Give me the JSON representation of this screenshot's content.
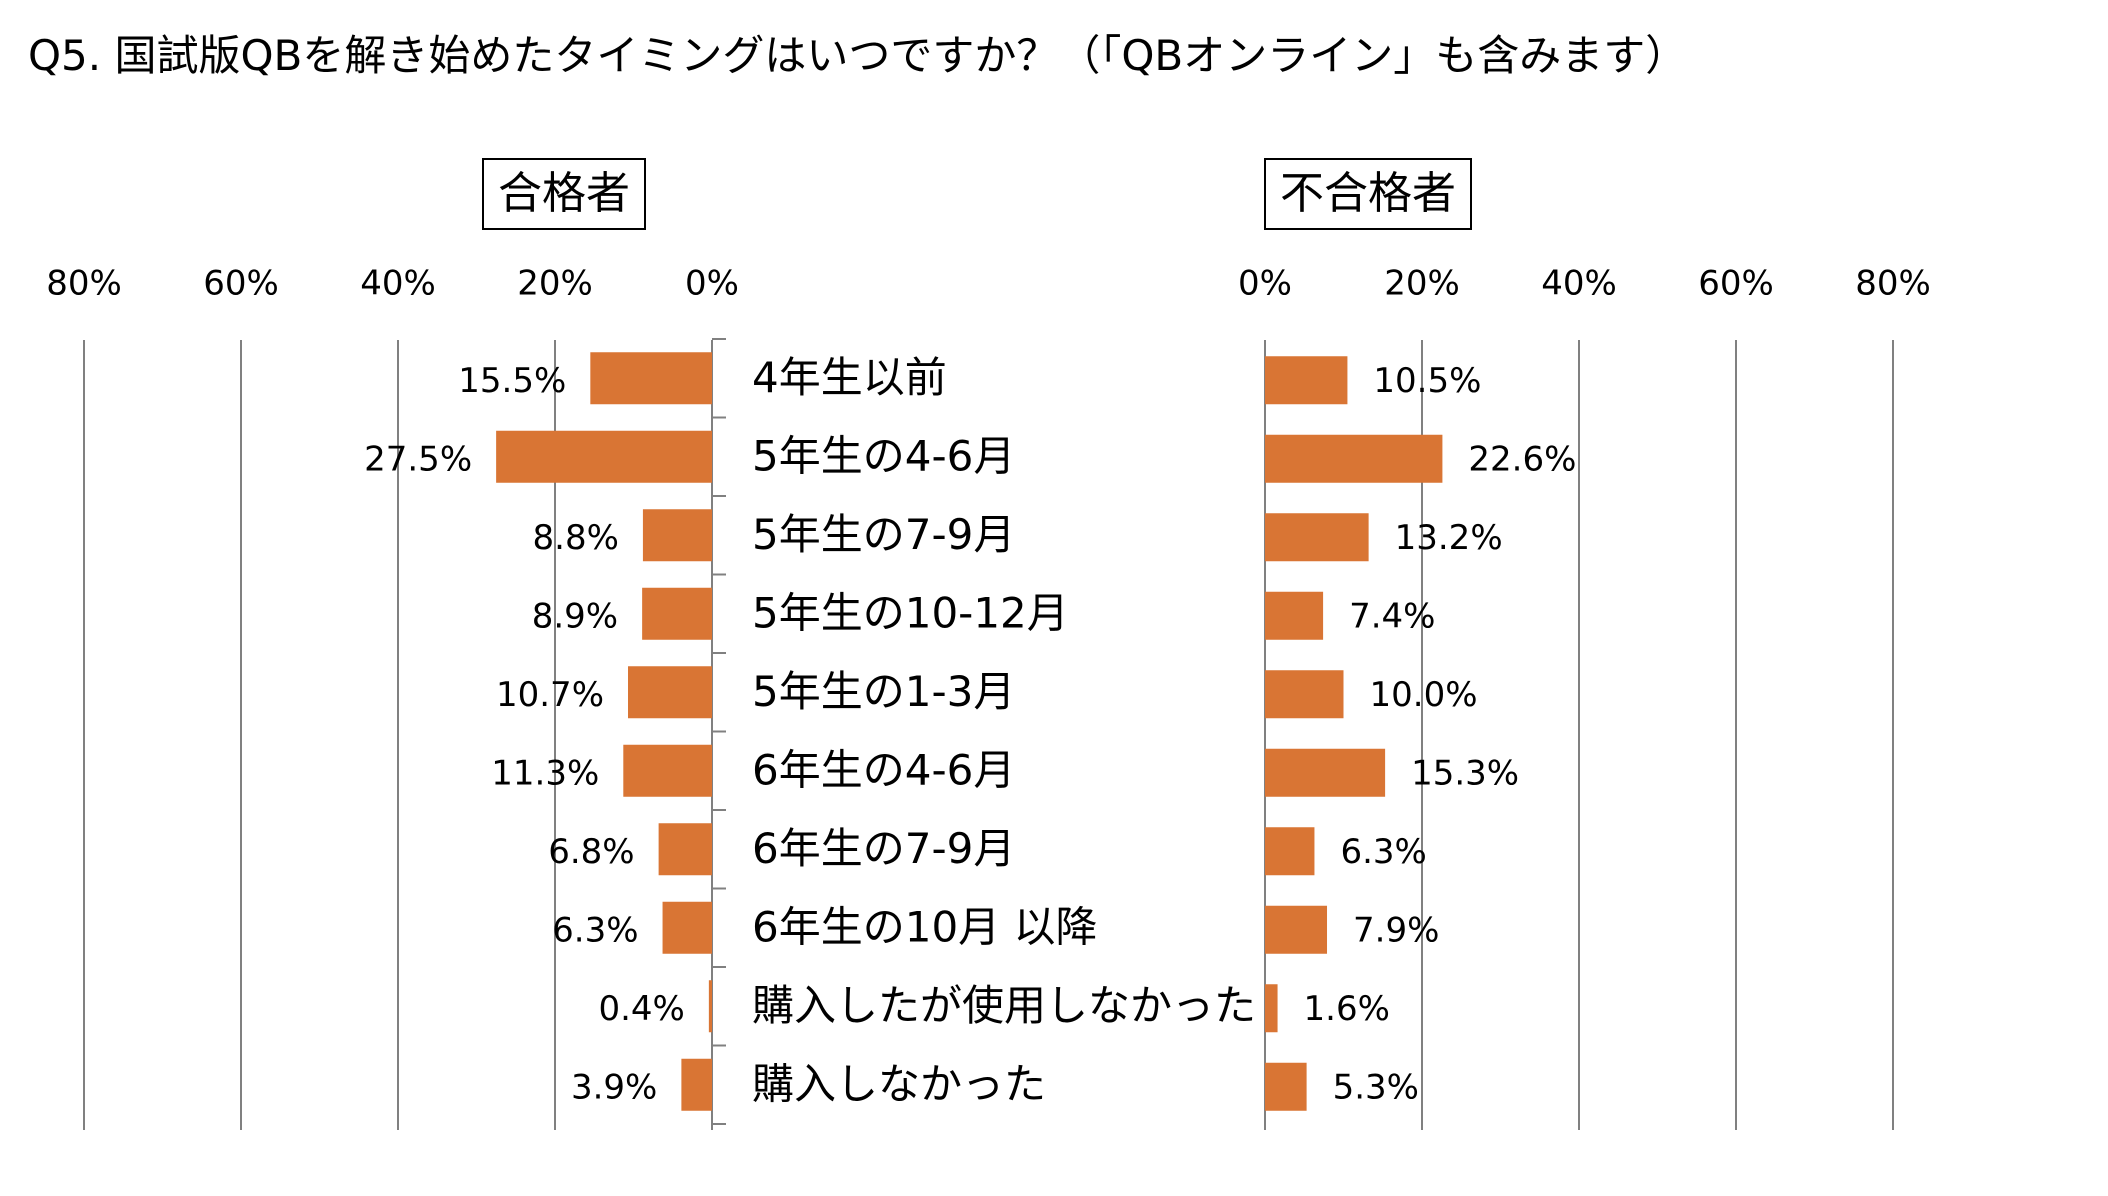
{
  "title": "Q5. 国試版QBを解き始めたタイミングはいつですか？（「QBオンライン」も含みます）",
  "colors": {
    "bar": "#D97534",
    "grid": "#808080",
    "axis": "#808080",
    "text": "#000000"
  },
  "chart_data": {
    "type": "bar",
    "orientation": "horizontal",
    "title": "Q5. 国試版QBを解き始めたタイミングはいつですか？（「QBオンライン」も含みます）",
    "categories": [
      "4年生以前",
      "5年生の4-6月",
      "5年生の7-9月",
      "5年生の10-12月",
      "5年生の1-3月",
      "6年生の4-6月",
      "6年生の7-9月",
      "6年生の10月 以降",
      "購入したが使用しなかった",
      "購入しなかった"
    ],
    "ticks": [
      "80%",
      "60%",
      "40%",
      "20%",
      "0%"
    ],
    "ticks_right": [
      "0%",
      "20%",
      "40%",
      "60%",
      "80%"
    ],
    "xlim": [
      0,
      80
    ],
    "grid": true,
    "series": [
      {
        "name": "合格者",
        "values": [
          15.5,
          27.5,
          8.8,
          8.9,
          10.7,
          11.3,
          6.8,
          6.3,
          0.4,
          3.9
        ],
        "labels": [
          "15.5%",
          "27.5%",
          "8.8%",
          "8.9%",
          "10.7%",
          "11.3%",
          "6.8%",
          "6.3%",
          "0.4%",
          "3.9%"
        ]
      },
      {
        "name": "不合格者",
        "values": [
          10.5,
          22.6,
          13.2,
          7.4,
          10.0,
          15.3,
          6.3,
          7.9,
          1.6,
          5.3
        ],
        "labels": [
          "10.5%",
          "22.6%",
          "13.2%",
          "7.4%",
          "10.0%",
          "15.3%",
          "6.3%",
          "7.9%",
          "1.6%",
          "5.3%"
        ]
      }
    ]
  }
}
